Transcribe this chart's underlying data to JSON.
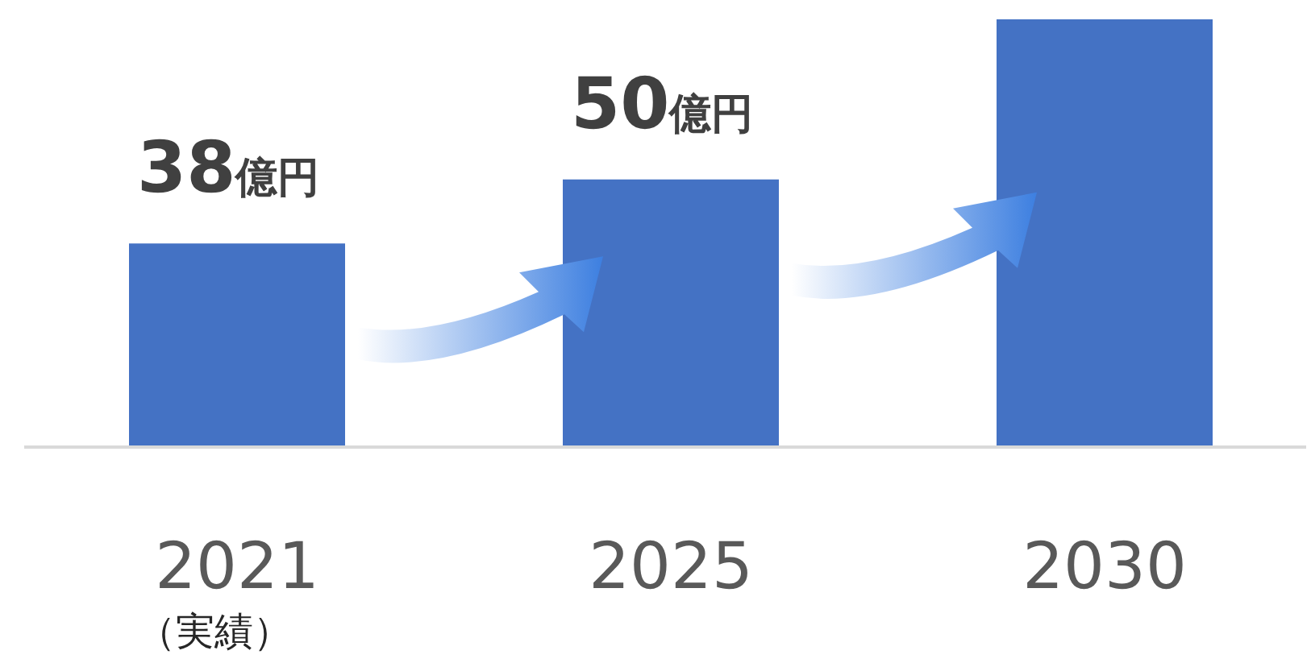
{
  "chart_data": {
    "type": "bar",
    "categories": [
      "2021",
      "2025",
      "2030"
    ],
    "values": [
      38,
      50,
      80
    ],
    "value_labels": [
      "38億円",
      "50億円",
      null
    ],
    "color": "#4472c4",
    "annotations": [
      "（実績）"
    ]
  }
}
